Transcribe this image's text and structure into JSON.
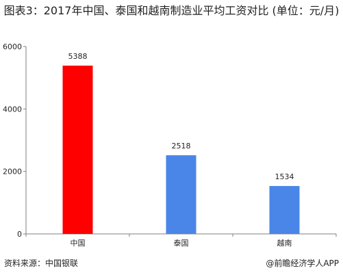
{
  "title": "图表3：2017年中国、泰国和越南制造业平均工资对比 (单位：元/月)",
  "source": "资料来源：中国银联",
  "credit": "@前瞻经济学人APP",
  "colors": {
    "highlight": "#ff0000",
    "default": "#4a86e8",
    "axis": "#7f7f7f"
  },
  "chart_data": {
    "type": "bar",
    "categories": [
      "中国",
      "泰国",
      "越南"
    ],
    "values": [
      5388,
      2518,
      1534
    ],
    "ylim": [
      0,
      6000
    ],
    "yticks": [
      0,
      2000,
      4000,
      6000
    ],
    "grid": false,
    "legend": "none"
  }
}
